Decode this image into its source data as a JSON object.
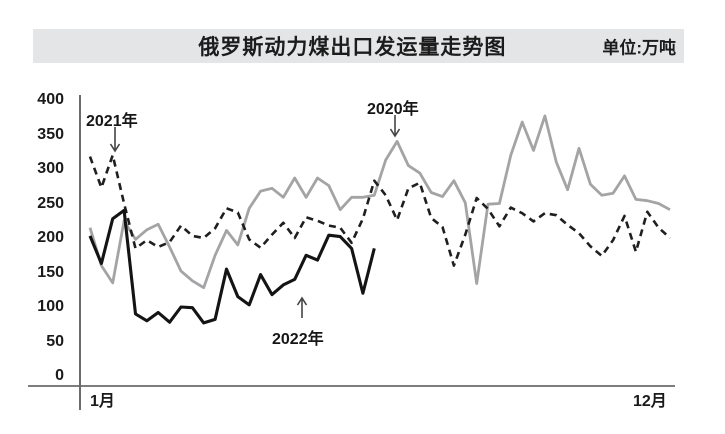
{
  "header": {
    "title": "俄罗斯动力煤出口发运量走势图",
    "unit_label": "单位:万吨"
  },
  "colors": {
    "title_bar_bg": "#e4e5e7",
    "axis": "#777777",
    "text": "#1a1a1a",
    "arrow": "#444444"
  },
  "chart_data": {
    "type": "line",
    "title": "俄罗斯动力煤出口发运量走势图",
    "unit": "万吨",
    "legend_position": "inline-annotations",
    "grid": false,
    "x_axis": {
      "start_label": "1月",
      "end_label": "12月",
      "points_per_series": 52,
      "note": "weekly points from January to December"
    },
    "y_axis": {
      "min": 0,
      "max": 400,
      "tick_interval": 50,
      "ticks": [
        400,
        350,
        300,
        250,
        200,
        150,
        100,
        50,
        0
      ]
    },
    "series": [
      {
        "key": "2020",
        "name": "2020年",
        "color": "#a4a4a6",
        "line_style": "solid",
        "values": [
          215,
          160,
          135,
          225,
          198,
          212,
          220,
          187,
          152,
          138,
          128,
          175,
          211,
          190,
          243,
          268,
          272,
          259,
          287,
          259,
          287,
          276,
          241,
          259,
          259,
          262,
          313,
          340,
          305,
          294,
          266,
          260,
          283,
          251,
          134,
          249,
          250,
          320,
          368,
          327,
          377,
          310,
          270,
          330,
          278,
          262,
          265,
          290,
          256,
          254,
          250,
          241
        ]
      },
      {
        "key": "2021",
        "name": "2021年",
        "color": "#1f1f1f",
        "line_style": "dashed",
        "values": [
          318,
          273,
          320,
          250,
          185,
          197,
          187,
          194,
          218,
          203,
          200,
          214,
          243,
          237,
          198,
          186,
          205,
          222,
          200,
          230,
          225,
          218,
          215,
          193,
          228,
          283,
          262,
          226,
          272,
          280,
          229,
          216,
          160,
          205,
          258,
          242,
          217,
          244,
          236,
          224,
          236,
          233,
          219,
          207,
          188,
          174,
          197,
          232,
          180,
          238,
          215,
          200
        ]
      },
      {
        "key": "2022",
        "name": "2022年",
        "color": "#141414",
        "line_style": "solid",
        "values": [
          203,
          163,
          228,
          240,
          90,
          80,
          92,
          78,
          100,
          99,
          77,
          82,
          155,
          115,
          103,
          147,
          118,
          132,
          140,
          175,
          168,
          204,
          202,
          185,
          120,
          185
        ]
      }
    ],
    "annotations": [
      {
        "series": "2020年",
        "arrow": "down",
        "points_at": "gray line peak (~340) in late July"
      },
      {
        "series": "2021年",
        "arrow": "down",
        "points_at": "dashed line peak (~320) in mid January"
      },
      {
        "series": "2022年",
        "arrow": "up",
        "points_at": "black line (ends at ~week 26)"
      }
    ]
  }
}
